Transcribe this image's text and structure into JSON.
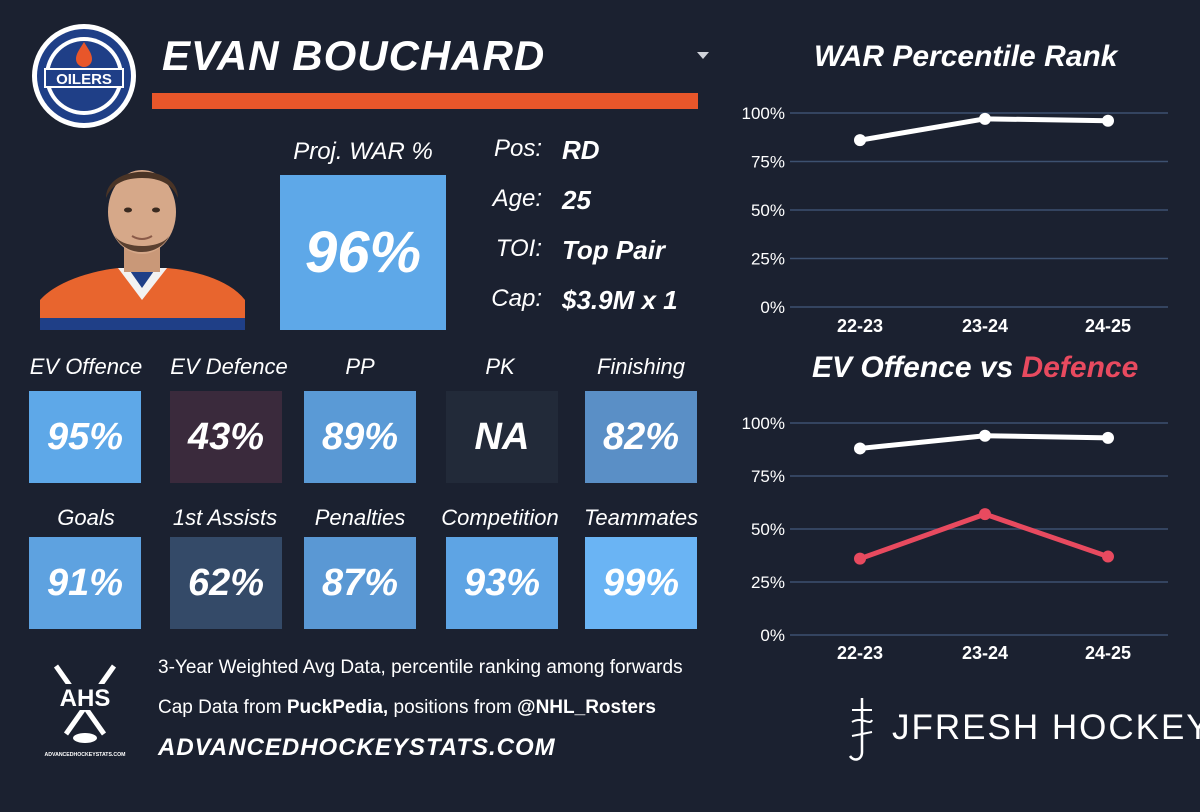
{
  "player": {
    "name": "EVAN BOUCHARD",
    "team_logo_text": "OILERS",
    "proj_war_label": "Proj. WAR %",
    "proj_war_value": "96%",
    "info": [
      {
        "key": "Pos:",
        "value": "RD"
      },
      {
        "key": "Age:",
        "value": "25"
      },
      {
        "key": "TOI:",
        "value": "Top Pair"
      },
      {
        "key": "Cap:",
        "value": "$3.9M x 1"
      }
    ]
  },
  "tiles": [
    {
      "label": "EV Offence",
      "value": "95%",
      "color": "#5ea8e8"
    },
    {
      "label": "EV Defence",
      "value": "43%",
      "color": "#3a2a3c"
    },
    {
      "label": "PP",
      "value": "89%",
      "color": "#5a9ad6"
    },
    {
      "label": "PK",
      "value": "NA",
      "color": "#222a39"
    },
    {
      "label": "Finishing",
      "value": "82%",
      "color": "#5a8fc6"
    },
    {
      "label": "Goals",
      "value": "91%",
      "color": "#5ea2e0"
    },
    {
      "label": "1st Assists",
      "value": "62%",
      "color": "#344a68"
    },
    {
      "label": "Penalties",
      "value": "87%",
      "color": "#5a98d4"
    },
    {
      "label": "Competition",
      "value": "93%",
      "color": "#5ea4e4"
    },
    {
      "label": "Teammates",
      "value": "99%",
      "color": "#6ab4f4"
    }
  ],
  "footer": {
    "ahs_logo_text": "AHS",
    "ahs_logo_sub": "ADVANCEDHOCKEYSTATS.COM",
    "line1": "3-Year Weighted Avg Data, percentile ranking among forwards",
    "line2_prefix": "Cap Data from ",
    "line2_bold1": "PuckPedia,",
    "line2_mid": " positions from ",
    "line2_bold2": "@NHL_Rosters",
    "site": "ADVANCEDHOCKEYSTATS.COM",
    "brand": "JFRESH HOCKEY"
  },
  "colors": {
    "background": "#1b2130",
    "accent_orange": "#e8562a",
    "offence_line": "#ffffff",
    "defence_line": "#e84a5f",
    "grid": "#3d5170"
  },
  "chart_data": [
    {
      "type": "line",
      "title": "WAR Percentile Rank",
      "categories": [
        "22-23",
        "23-24",
        "24-25"
      ],
      "yticks": [
        "0%",
        "25%",
        "50%",
        "75%",
        "100%"
      ],
      "ylim": [
        0,
        100
      ],
      "series": [
        {
          "values": [
            86,
            97,
            96
          ],
          "color": "#ffffff"
        }
      ]
    },
    {
      "type": "line",
      "title_parts": [
        "EV Offence vs ",
        "Defence"
      ],
      "categories": [
        "22-23",
        "23-24",
        "24-25"
      ],
      "yticks": [
        "0%",
        "25%",
        "50%",
        "75%",
        "100%"
      ],
      "ylim": [
        0,
        100
      ],
      "series": [
        {
          "values": [
            88,
            94,
            93
          ],
          "color": "#ffffff"
        },
        {
          "values": [
            36,
            57,
            37
          ],
          "color": "#e84a5f"
        }
      ]
    }
  ]
}
